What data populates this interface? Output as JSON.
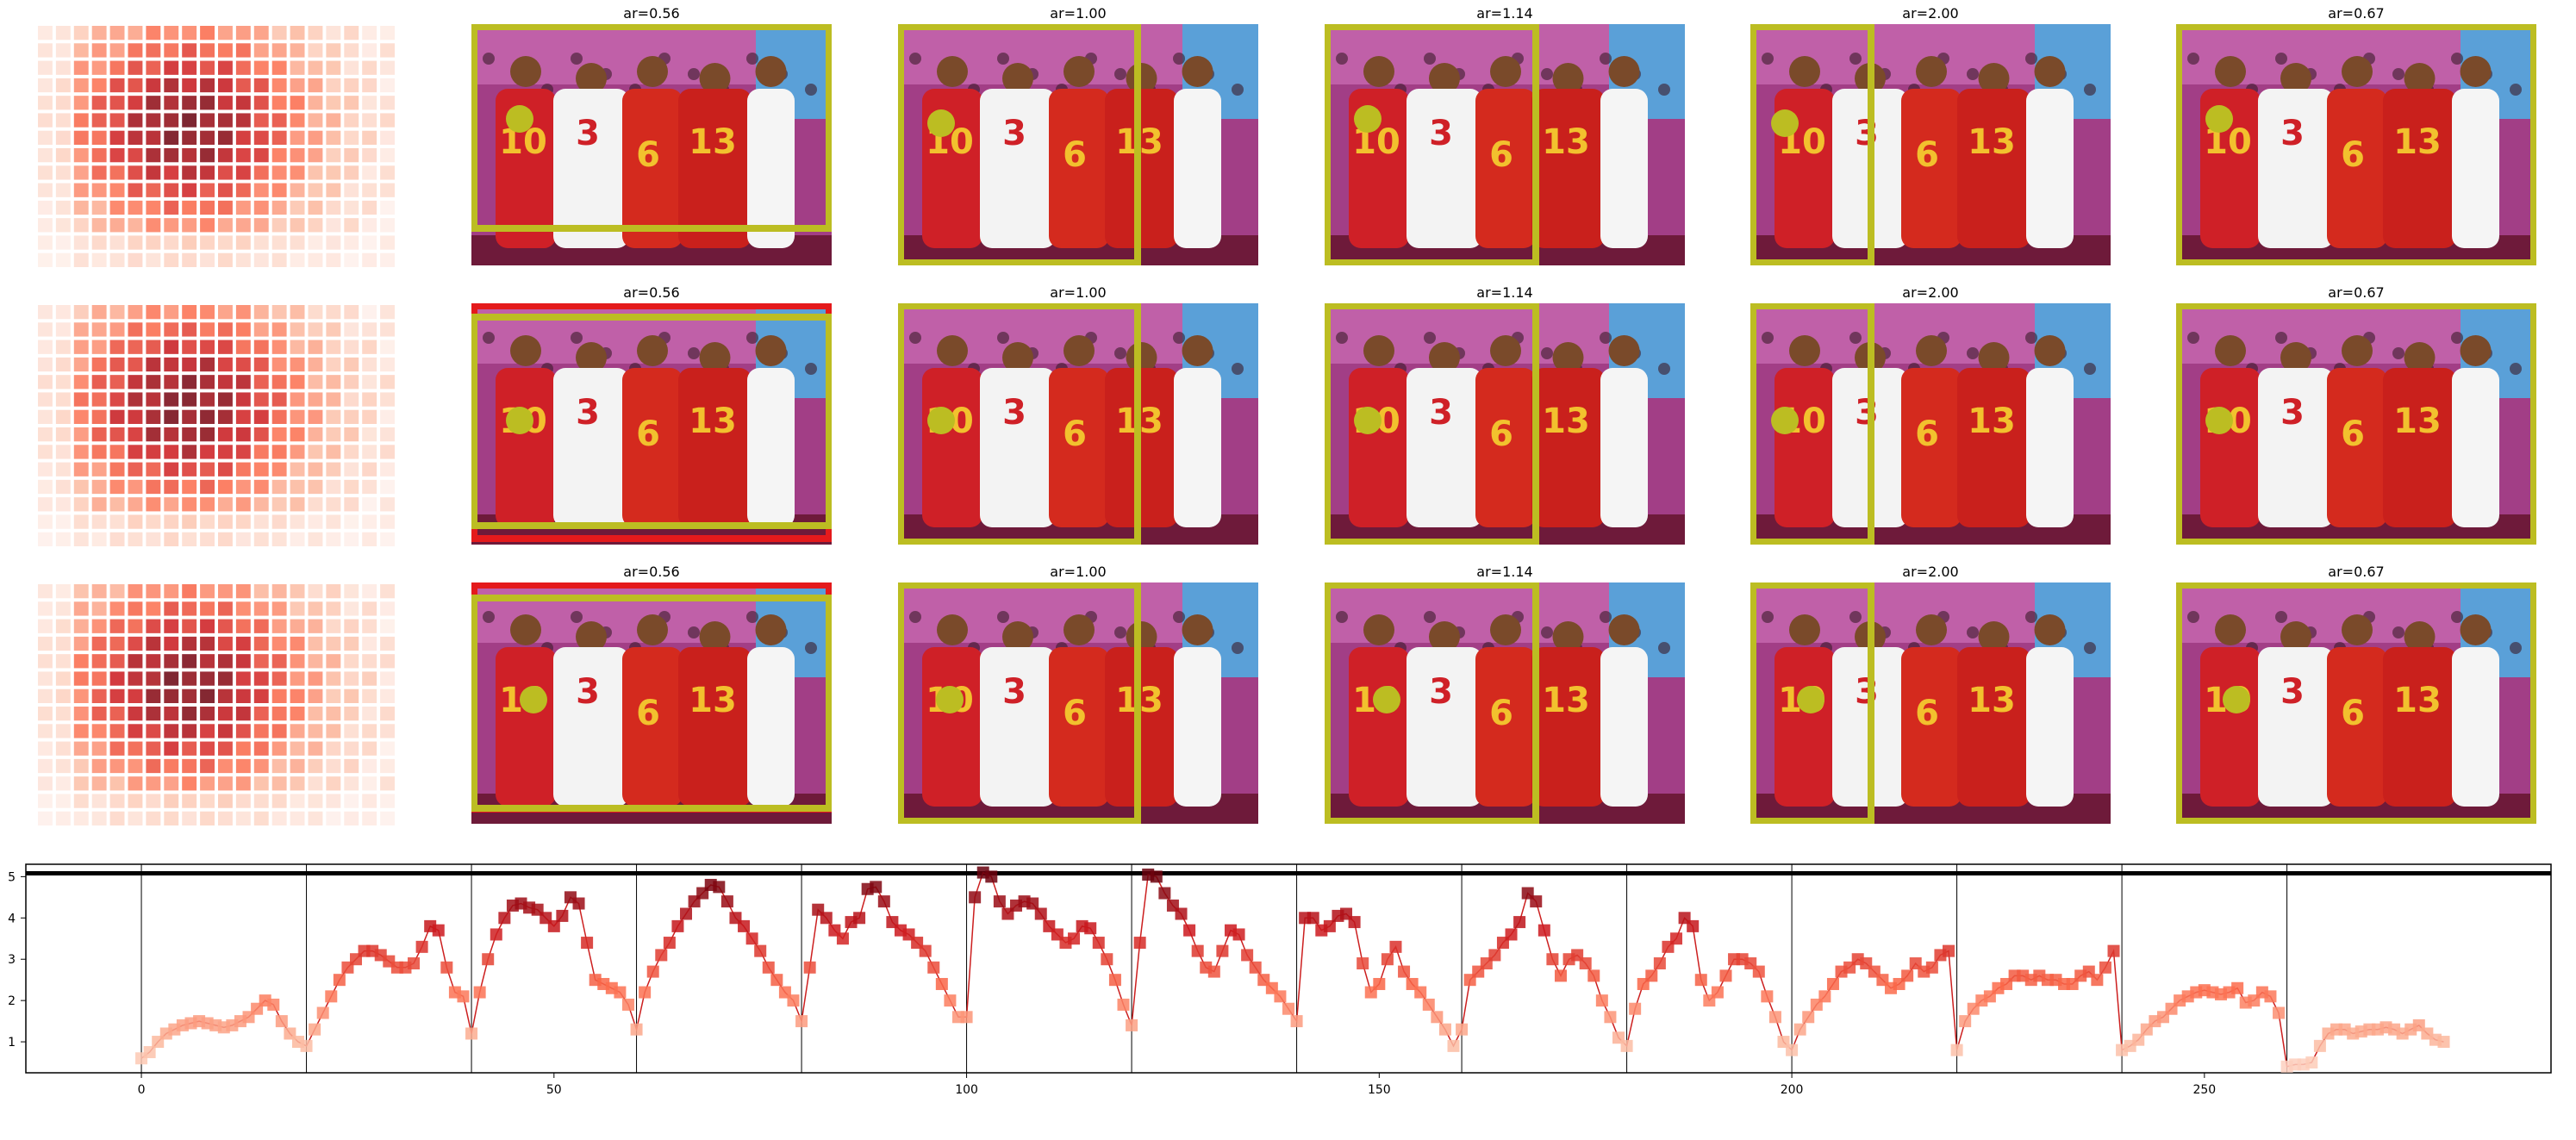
{
  "figure": {
    "rows": [
      {
        "panels": [
          {
            "title": "ar=0.56",
            "boxes": [
              {
                "color": "#bcbd22"
              }
            ]
          },
          {
            "title": "ar=1.00",
            "boxes": [
              {
                "color": "#bcbd22"
              }
            ]
          },
          {
            "title": "ar=1.14",
            "boxes": [
              {
                "color": "#bcbd22"
              }
            ]
          },
          {
            "title": "ar=2.00",
            "boxes": [
              {
                "color": "#bcbd22"
              }
            ]
          },
          {
            "title": "ar=0.67",
            "boxes": [
              {
                "color": "#bcbd22"
              }
            ]
          }
        ]
      },
      {
        "panels": [
          {
            "title": "ar=0.56",
            "boxes": [
              {
                "color": "#e41a1c"
              },
              {
                "color": "#bcbd22"
              }
            ]
          },
          {
            "title": "ar=1.00",
            "boxes": [
              {
                "color": "#bcbd22"
              }
            ]
          },
          {
            "title": "ar=1.14",
            "boxes": [
              {
                "color": "#bcbd22"
              }
            ]
          },
          {
            "title": "ar=2.00",
            "boxes": [
              {
                "color": "#bcbd22"
              }
            ]
          },
          {
            "title": "ar=0.67",
            "boxes": [
              {
                "color": "#bcbd22"
              }
            ]
          }
        ]
      },
      {
        "panels": [
          {
            "title": "ar=0.56",
            "boxes": [
              {
                "color": "#e41a1c"
              },
              {
                "color": "#bcbd22"
              }
            ]
          },
          {
            "title": "ar=1.00",
            "boxes": [
              {
                "color": "#bcbd22"
              }
            ]
          },
          {
            "title": "ar=1.14",
            "boxes": [
              {
                "color": "#bcbd22"
              }
            ]
          },
          {
            "title": "ar=2.00",
            "boxes": [
              {
                "color": "#bcbd22"
              }
            ]
          },
          {
            "title": "ar=0.67",
            "boxes": [
              {
                "color": "#bcbd22"
              }
            ]
          }
        ]
      }
    ],
    "colors": {
      "olive": "#bcbd22",
      "red": "#e41a1c",
      "line": "#cc1f1f"
    }
  },
  "chart_data": {
    "type": "line",
    "x_ticks": [
      0,
      50,
      100,
      150,
      200,
      250
    ],
    "y_ticks": [
      1,
      2,
      3,
      4,
      5
    ],
    "xlim": [
      -14,
      292
    ],
    "ylim": [
      0.25,
      5.3
    ],
    "segment_boundaries": [
      0,
      20,
      40,
      60,
      80,
      100,
      120,
      140,
      160,
      180,
      200,
      220,
      240,
      260
    ],
    "hline": 5.08,
    "series": [
      {
        "values": [
          0.6,
          0.75,
          1.0,
          1.2,
          1.3,
          1.4,
          1.45,
          1.5,
          1.45,
          1.4,
          1.35,
          1.4,
          1.5,
          1.6,
          1.8,
          2.0,
          1.9,
          1.5,
          1.2,
          1.0,
          0.9,
          1.3,
          1.7,
          2.1,
          2.5,
          2.8,
          3.0,
          3.2,
          3.2,
          3.1,
          2.95,
          2.8,
          2.8,
          2.9,
          3.3,
          3.8,
          3.7,
          2.8,
          2.2,
          2.1,
          1.2,
          2.2,
          3.0,
          3.6,
          4.0,
          4.3,
          4.35,
          4.25,
          4.2,
          4.0,
          3.8,
          4.05,
          4.5,
          4.35,
          3.4,
          2.5,
          2.4,
          2.3,
          2.2,
          1.9,
          1.3,
          2.2,
          2.7,
          3.1,
          3.4,
          3.8,
          4.1,
          4.4,
          4.6,
          4.8,
          4.75,
          4.4,
          4.0,
          3.8,
          3.5,
          3.2,
          2.8,
          2.5,
          2.2,
          2.0,
          1.5,
          2.8,
          4.2,
          4.0,
          3.7,
          3.5,
          3.9,
          4.0,
          4.7,
          4.75,
          4.4,
          3.9,
          3.7,
          3.6,
          3.4,
          3.2,
          2.8,
          2.4,
          2.0,
          1.6,
          1.6,
          4.5,
          5.1,
          5.0,
          4.4,
          4.1,
          4.3,
          4.4,
          4.35,
          4.1,
          3.8,
          3.6,
          3.4,
          3.5,
          3.8,
          3.75,
          3.4,
          3.0,
          2.5,
          1.9,
          1.4,
          3.4,
          5.05,
          5.0,
          4.6,
          4.3,
          4.1,
          3.7,
          3.2,
          2.8,
          2.7,
          3.2,
          3.7,
          3.6,
          3.1,
          2.8,
          2.5,
          2.3,
          2.1,
          1.8,
          1.5,
          4.0,
          4.0,
          3.7,
          3.8,
          4.05,
          4.1,
          3.9,
          2.9,
          2.2,
          2.4,
          3.0,
          3.3,
          2.7,
          2.4,
          2.2,
          1.9,
          1.6,
          1.3,
          0.9,
          1.3,
          2.5,
          2.7,
          2.9,
          3.1,
          3.4,
          3.6,
          3.9,
          4.6,
          4.4,
          3.7,
          3.0,
          2.6,
          3.0,
          3.1,
          2.9,
          2.6,
          2.0,
          1.6,
          1.1,
          0.9,
          1.8,
          2.4,
          2.6,
          2.9,
          3.3,
          3.5,
          4.0,
          3.8,
          2.5,
          2.0,
          2.2,
          2.6,
          3.0,
          3.0,
          2.9,
          2.7,
          2.1,
          1.6,
          1.0,
          0.8,
          1.3,
          1.6,
          1.9,
          2.1,
          2.4,
          2.7,
          2.8,
          3.0,
          2.9,
          2.7,
          2.5,
          2.3,
          2.4,
          2.6,
          2.9,
          2.7,
          2.8,
          3.1,
          3.2,
          0.8,
          1.5,
          1.8,
          2.0,
          2.1,
          2.3,
          2.4,
          2.6,
          2.6,
          2.5,
          2.6,
          2.5,
          2.5,
          2.4,
          2.4,
          2.6,
          2.7,
          2.5,
          2.8,
          3.2,
          0.8,
          0.9,
          1.05,
          1.3,
          1.5,
          1.6,
          1.8,
          2.0,
          2.1,
          2.2,
          2.25,
          2.2,
          2.15,
          2.2,
          2.3,
          1.95,
          2.0,
          2.2,
          2.1,
          1.7,
          0.4,
          0.45,
          0.45,
          0.5,
          0.9,
          1.2,
          1.3,
          1.3,
          1.2,
          1.25,
          1.3,
          1.3,
          1.35,
          1.3,
          1.2,
          1.3,
          1.4,
          1.2,
          1.05,
          1.0
        ]
      }
    ]
  }
}
